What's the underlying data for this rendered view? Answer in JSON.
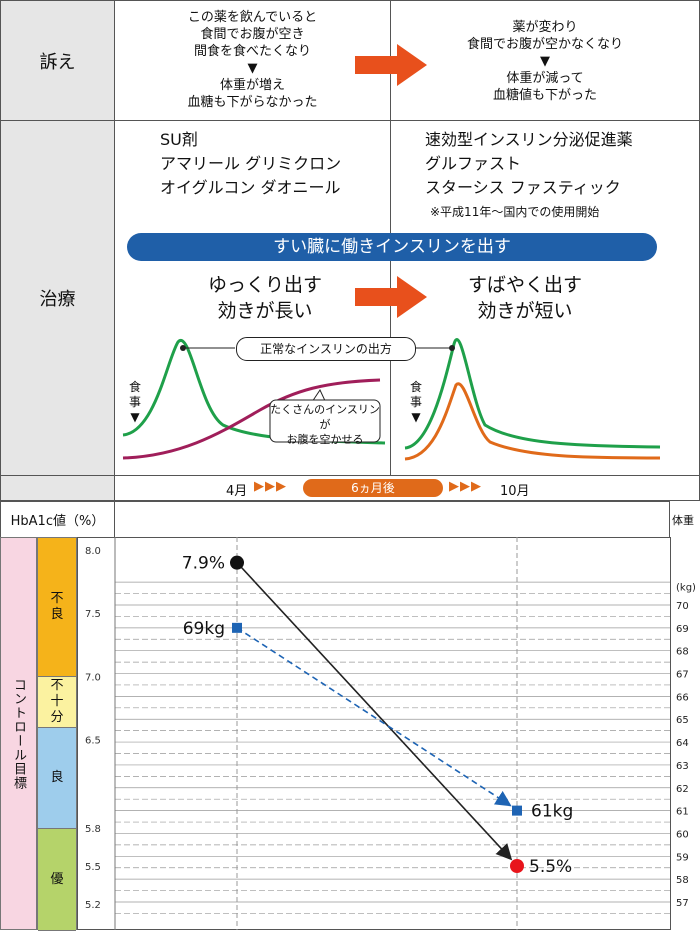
{
  "complaint": {
    "label": "訴え",
    "before_lines": [
      "この薬を飲んでいると",
      "食間でお腹が空き",
      "間食を食べたくなり",
      "▼",
      "体重が増え",
      "血糖も下がらなかった"
    ],
    "after_lines": [
      "薬が変わり",
      "食間でお腹が空かなくなり",
      "▼",
      "体重が減って",
      "血糖値も下がった"
    ]
  },
  "treatment": {
    "label": "治療",
    "before_drugs": [
      "SU剤",
      "アマリール グリミクロン",
      "オイグルコン ダオニール"
    ],
    "after_drugs": [
      "速効型インスリン分泌促進薬",
      "グルファスト",
      "スターシス ファスティック"
    ],
    "after_note": "※平成11年～国内での使用開始",
    "banner": "すい臓に働きインスリンを出す",
    "before_effect": [
      "ゆっくり出す",
      "効きが長い"
    ],
    "after_effect": [
      "すばやく出す",
      "効きが短い"
    ],
    "normal_label": "正常なインスリンの出方",
    "meal_label_chars": [
      "食",
      "事",
      "▼"
    ],
    "callout_lines": [
      "たくさんのインスリンが",
      "お腹を空かせる"
    ],
    "curve_colors": {
      "normal": "#1fa04a",
      "slow": "#a01e5a",
      "fast": "#e06a1a"
    }
  },
  "timeline": {
    "start": "4月",
    "middle": "6ヵ月後",
    "end": "10月",
    "arrows": "▶▶▶",
    "pill_color": "#e06a1a"
  },
  "chart_header": {
    "hba1c_label": "HbA1c値（%）",
    "weight_label": "体重",
    "weight_unit": "(kg)"
  },
  "control_target": {
    "vertical_label": "コントロール目標",
    "bands": [
      {
        "label": "不良",
        "color": "#f5b31a"
      },
      {
        "label": "不十分",
        "color": "#fbf2a0"
      },
      {
        "label": "良",
        "color": "#9ecdec"
      },
      {
        "label": "優",
        "color": "#b5d36a"
      }
    ],
    "side_color": "#f8d6e2"
  },
  "chart_data": {
    "type": "line",
    "x": [
      "4月",
      "10月"
    ],
    "hba1c_ticks": [
      "8.0",
      "7.5",
      "7.0",
      "6.5",
      "5.8",
      "5.5",
      "5.2"
    ],
    "weight_ticks": [
      "70",
      "69",
      "68",
      "67",
      "66",
      "65",
      "64",
      "63",
      "62",
      "61",
      "60",
      "59",
      "58",
      "57"
    ],
    "series": [
      {
        "values": [
          7.9,
          5.5
        ],
        "labels": [
          "7.9%",
          "5.5%"
        ],
        "color": "#222222",
        "marker_colors": [
          "#111111",
          "#e8151c"
        ]
      },
      {
        "values": [
          69,
          61
        ],
        "labels": [
          "69kg",
          "61kg"
        ],
        "color": "#1e64b4"
      }
    ]
  }
}
